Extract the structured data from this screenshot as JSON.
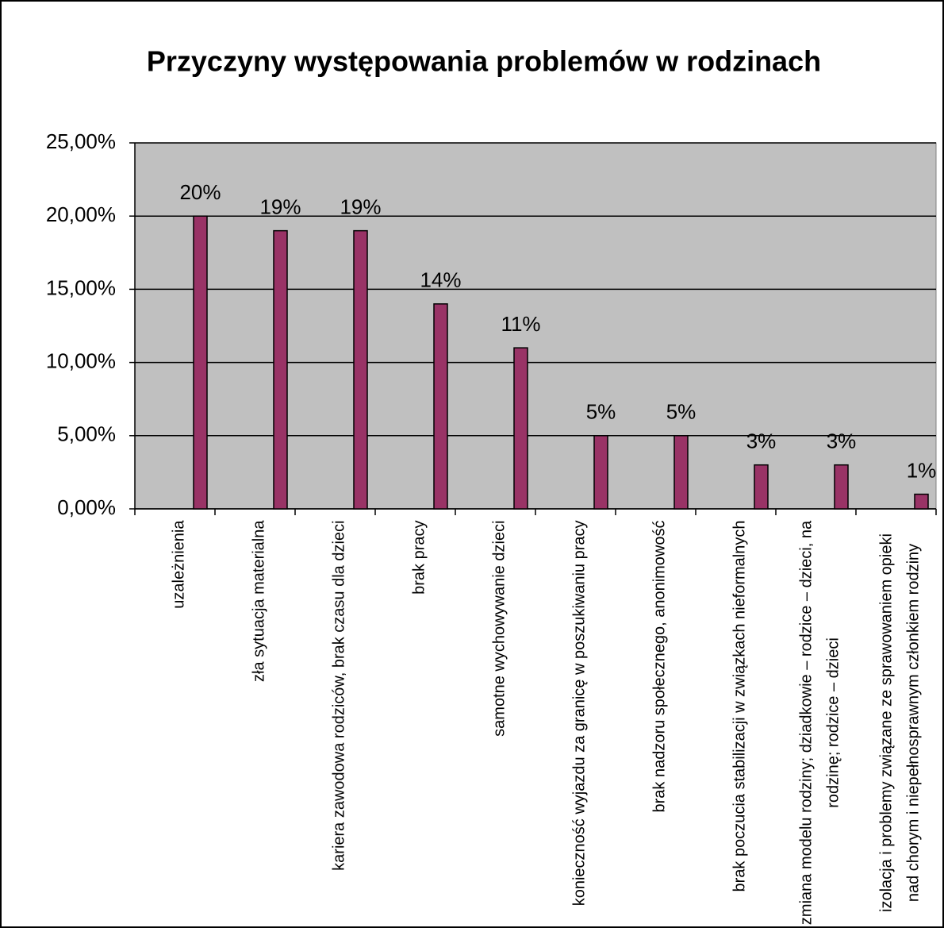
{
  "chart_data": {
    "type": "bar",
    "title": "Przyczyny występowania problemów w rodzinach",
    "categories": [
      "uzależnienia",
      "zła sytuacja materialna",
      "kariera zawodowa rodziców, brak czasu dla dzieci",
      "brak pracy",
      "samotne wychowywanie dzieci",
      "konieczność wyjazdu za granicę w poszukiwaniu pracy",
      "brak nadzoru społecznego, anonimowość",
      "brak poczucia stabilizacji w związkach nieformalnych",
      "zmiana modelu rodziny; dziadkowie – rodzice – dzieci, na rodzinę; rodzice – dzieci",
      "izolacja i problemy związane ze sprawowaniem opieki nad chorym i niepełnosprawnym członkiem rodziny"
    ],
    "values": [
      20,
      19,
      19,
      14,
      11,
      5,
      5,
      3,
      3,
      1
    ],
    "value_labels": [
      "20%",
      "19%",
      "19%",
      "14%",
      "11%",
      "5%",
      "5%",
      "3%",
      "3%",
      "1%"
    ],
    "color": "#993366",
    "ylim": [
      0,
      25
    ],
    "yticks": [
      {
        "value": 0,
        "label": "0,00%"
      },
      {
        "value": 5,
        "label": "5,00%"
      },
      {
        "value": 10,
        "label": "10,00%"
      },
      {
        "value": 15,
        "label": "15,00%"
      },
      {
        "value": 20,
        "label": "20,00%"
      },
      {
        "value": 25,
        "label": "25,00%"
      }
    ],
    "grid": true
  }
}
